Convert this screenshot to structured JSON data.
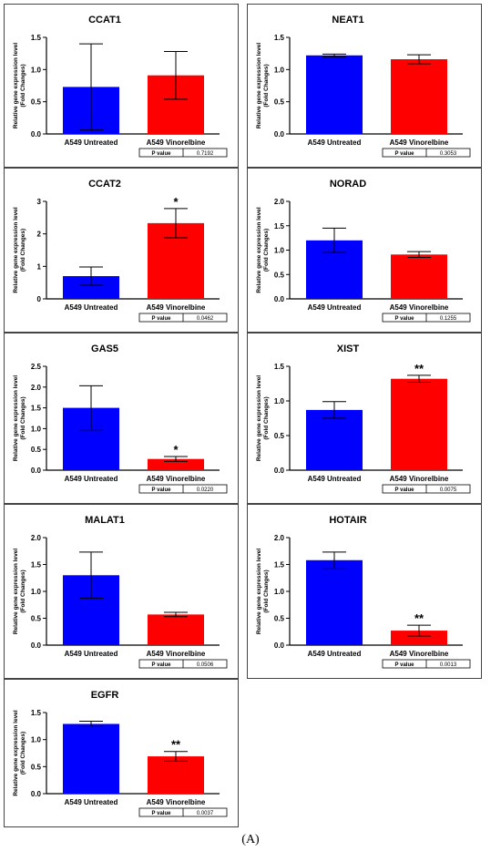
{
  "caption": "(A)",
  "axis_label": "Relative gene expression level",
  "axis_label2": "(Fold Changes)",
  "pvalue_label": "P value",
  "colors": {
    "untreated": "#0000ff",
    "vinorelbine": "#ff0000"
  },
  "chart_data": [
    {
      "type": "bar",
      "title": "CCAT1",
      "categories": [
        "A549 Untreated",
        "A549 Vinorelbine"
      ],
      "values": [
        0.73,
        0.91
      ],
      "errors": [
        0.67,
        0.37
      ],
      "ylim": [
        0,
        1.5
      ],
      "yticks": [
        "0.0",
        "0.5",
        "1.0",
        "1.5"
      ],
      "ylabel": "Relative gene expression level (Fold Changes)",
      "significance": [
        "",
        ""
      ],
      "p_value": "0.7192"
    },
    {
      "type": "bar",
      "title": "NEAT1",
      "categories": [
        "A549 Untreated",
        "A549 Vinorelbine"
      ],
      "values": [
        1.22,
        1.16
      ],
      "errors": [
        0.02,
        0.07
      ],
      "ylim": [
        0,
        1.5
      ],
      "yticks": [
        "0.0",
        "0.5",
        "1.0",
        "1.5"
      ],
      "ylabel": "Relative gene expression level (Fold Changes)",
      "significance": [
        "",
        ""
      ],
      "p_value": "0.3053"
    },
    {
      "type": "bar",
      "title": "CCAT2",
      "categories": [
        "A549 Untreated",
        "A549 Vinorelbine"
      ],
      "values": [
        0.7,
        2.33
      ],
      "errors": [
        0.28,
        0.45
      ],
      "ylim": [
        0,
        3
      ],
      "yticks": [
        "0",
        "1",
        "2",
        "3"
      ],
      "ylabel": "Relative gene expression level (Fold Changes)",
      "significance": [
        "",
        "*"
      ],
      "p_value": "0.0462"
    },
    {
      "type": "bar",
      "title": "NORAD",
      "categories": [
        "A549 Untreated",
        "A549 Vinorelbine"
      ],
      "values": [
        1.2,
        0.91
      ],
      "errors": [
        0.25,
        0.06
      ],
      "ylim": [
        0,
        2
      ],
      "yticks": [
        "0.0",
        "0.5",
        "1.0",
        "1.5",
        "2.0"
      ],
      "ylabel": "Relative gene expression level (Fold Changes)",
      "significance": [
        "",
        ""
      ],
      "p_value": "0.1255"
    },
    {
      "type": "bar",
      "title": "GAS5",
      "categories": [
        "A549 Untreated",
        "A549 Vinorelbine"
      ],
      "values": [
        1.5,
        0.27
      ],
      "errors": [
        0.53,
        0.06
      ],
      "ylim": [
        0,
        2.5
      ],
      "yticks": [
        "0.0",
        "0.5",
        "1.0",
        "1.5",
        "2.0",
        "2.5"
      ],
      "ylabel": "Relative gene expression level (Fold Changes)",
      "significance": [
        "",
        "*"
      ],
      "p_value": "0.0220"
    },
    {
      "type": "bar",
      "title": "XIST",
      "categories": [
        "A549 Untreated",
        "A549 Vinorelbine"
      ],
      "values": [
        0.87,
        1.32
      ],
      "errors": [
        0.12,
        0.05
      ],
      "ylim": [
        0,
        1.5
      ],
      "yticks": [
        "0.0",
        "0.5",
        "1.0",
        "1.5"
      ],
      "ylabel": "Relative gene expression level (Fold Changes)",
      "significance": [
        "",
        "**"
      ],
      "p_value": "0.0075"
    },
    {
      "type": "bar",
      "title": "MALAT1",
      "categories": [
        "A549 Untreated",
        "A549 Vinorelbine"
      ],
      "values": [
        1.3,
        0.57
      ],
      "errors": [
        0.43,
        0.04
      ],
      "ylim": [
        0,
        2
      ],
      "yticks": [
        "0.0",
        "0.5",
        "1.0",
        "1.5",
        "2.0"
      ],
      "ylabel": "Relative gene expression level (Fold Changes)",
      "significance": [
        "",
        ""
      ],
      "p_value": "0.0506"
    },
    {
      "type": "bar",
      "title": "HOTAIR",
      "categories": [
        "A549 Untreated",
        "A549 Vinorelbine"
      ],
      "values": [
        1.58,
        0.27
      ],
      "errors": [
        0.15,
        0.1
      ],
      "ylim": [
        0,
        2
      ],
      "yticks": [
        "0.0",
        "0.5",
        "1.0",
        "1.5",
        "2.0"
      ],
      "ylabel": "Relative gene expression level (Fold Changes)",
      "significance": [
        "",
        "**"
      ],
      "p_value": "0.0013"
    },
    {
      "type": "bar",
      "title": "EGFR",
      "categories": [
        "A549 Untreated",
        "A549 Vinorelbine"
      ],
      "values": [
        1.29,
        0.69
      ],
      "errors": [
        0.05,
        0.09
      ],
      "ylim": [
        0,
        1.5
      ],
      "yticks": [
        "0.0",
        "0.5",
        "1.0",
        "1.5"
      ],
      "ylabel": "Relative gene expression level (Fold Changes)",
      "significance": [
        "",
        "**"
      ],
      "p_value": "0.0037"
    }
  ]
}
